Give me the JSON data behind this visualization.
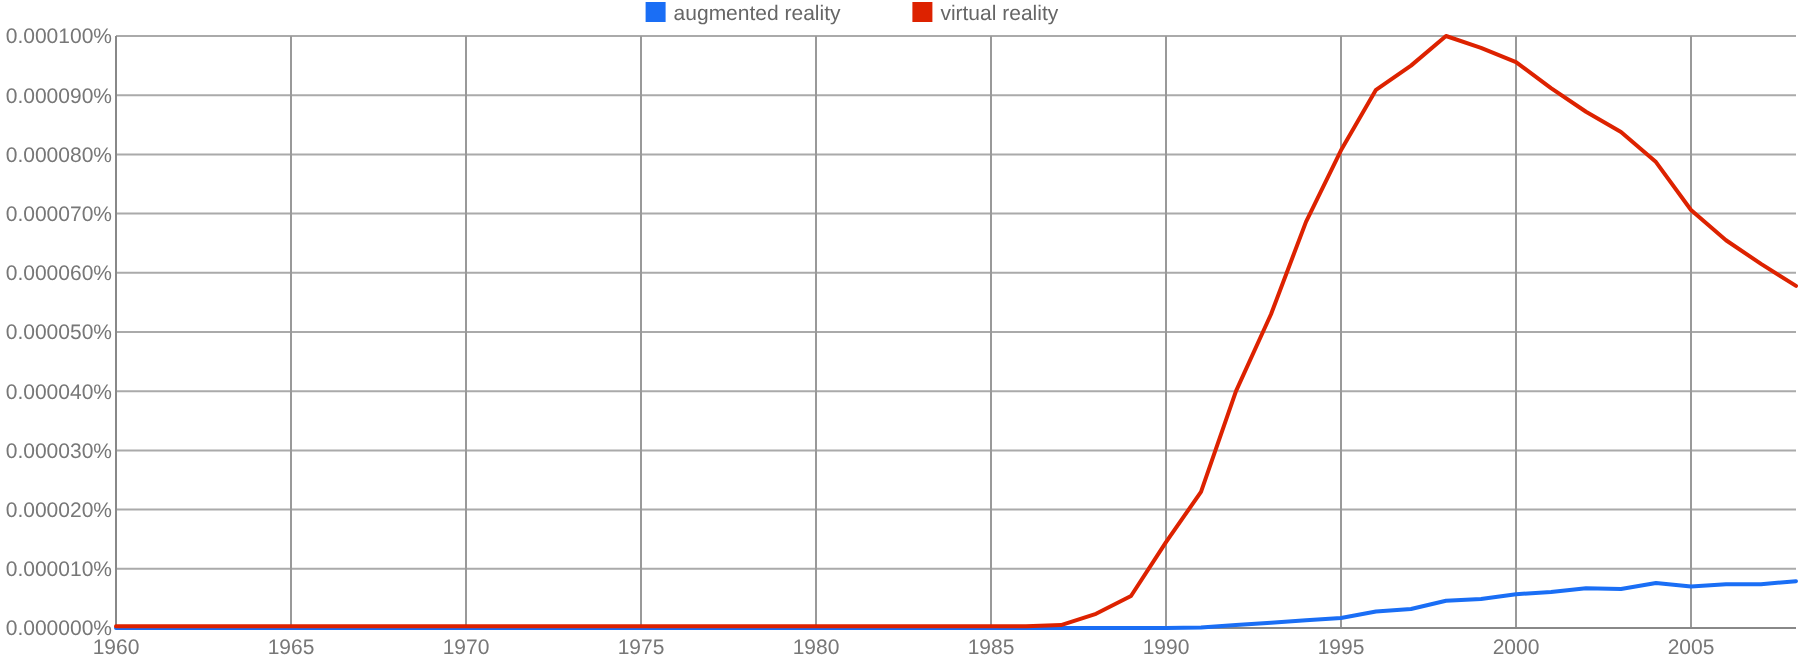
{
  "chart_data": {
    "type": "line",
    "x": [
      1960,
      1961,
      1962,
      1963,
      1964,
      1965,
      1966,
      1967,
      1968,
      1969,
      1970,
      1971,
      1972,
      1973,
      1974,
      1975,
      1976,
      1977,
      1978,
      1979,
      1980,
      1981,
      1982,
      1983,
      1984,
      1985,
      1986,
      1987,
      1988,
      1989,
      1990,
      1991,
      1992,
      1993,
      1994,
      1995,
      1996,
      1997,
      1998,
      1999,
      2000,
      2001,
      2002,
      2003,
      2004,
      2005,
      2006,
      2007,
      2008
    ],
    "series": [
      {
        "name": "augmented reality",
        "color": "#1a6ef5",
        "values": [
          0,
          0,
          0,
          0,
          0,
          0,
          0,
          0,
          0,
          0,
          0,
          0,
          0,
          0,
          0,
          0,
          0,
          0,
          0,
          0,
          0,
          0,
          0,
          0,
          0,
          0,
          0,
          0,
          0,
          0,
          0,
          1e-07,
          5e-07,
          9e-07,
          1.3e-06,
          1.7e-06,
          2.8e-06,
          3.2e-06,
          4.6e-06,
          4.9e-06,
          5.7e-06,
          6.1e-06,
          6.7e-06,
          6.6e-06,
          7.6e-06,
          7e-06,
          7.4e-06,
          7.4e-06,
          7.9e-06
        ]
      },
      {
        "name": "virtual reality",
        "color": "#dd2200",
        "values": [
          3e-07,
          3e-07,
          3e-07,
          3e-07,
          3e-07,
          3e-07,
          3e-07,
          3e-07,
          3e-07,
          3e-07,
          3e-07,
          3e-07,
          3e-07,
          3e-07,
          3e-07,
          3e-07,
          3e-07,
          3e-07,
          3e-07,
          3e-07,
          3e-07,
          3e-07,
          3e-07,
          3e-07,
          3e-07,
          3e-07,
          3e-07,
          5e-07,
          2.4e-06,
          5.4e-06,
          1.45e-05,
          2.3e-05,
          4e-05,
          5.3e-05,
          6.86e-05,
          8.07e-05,
          9.09e-05,
          9.5e-05,
          0.0001,
          9.8e-05,
          9.56e-05,
          9.12e-05,
          8.72e-05,
          8.38e-05,
          7.87e-05,
          7.06e-05,
          6.55e-05,
          6.15e-05,
          5.78e-05
        ]
      }
    ],
    "xlim": [
      1960,
      2008
    ],
    "xticks": [
      1960,
      1965,
      1970,
      1975,
      1980,
      1985,
      1990,
      1995,
      2000,
      2005
    ],
    "ylim": [
      0,
      0.0001
    ],
    "yticks": [
      {
        "value": 0,
        "label": "0.000000%"
      },
      {
        "value": 1e-05,
        "label": "0.000010%"
      },
      {
        "value": 2e-05,
        "label": "0.000020%"
      },
      {
        "value": 3e-05,
        "label": "0.000030%"
      },
      {
        "value": 4e-05,
        "label": "0.000040%"
      },
      {
        "value": 5e-05,
        "label": "0.000050%"
      },
      {
        "value": 6e-05,
        "label": "0.000060%"
      },
      {
        "value": 7e-05,
        "label": "0.000070%"
      },
      {
        "value": 8e-05,
        "label": "0.000080%"
      },
      {
        "value": 9e-05,
        "label": "0.000090%"
      },
      {
        "value": 0.0001,
        "label": "0.000100%"
      }
    ],
    "grid": true,
    "legend": "top"
  }
}
